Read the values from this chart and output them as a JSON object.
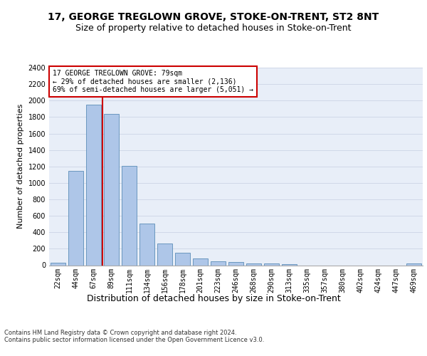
{
  "title": "17, GEORGE TREGLOWN GROVE, STOKE-ON-TRENT, ST2 8NT",
  "subtitle": "Size of property relative to detached houses in Stoke-on-Trent",
  "xlabel": "Distribution of detached houses by size in Stoke-on-Trent",
  "ylabel": "Number of detached properties",
  "categories": [
    "22sqm",
    "44sqm",
    "67sqm",
    "89sqm",
    "111sqm",
    "134sqm",
    "156sqm",
    "178sqm",
    "201sqm",
    "223sqm",
    "246sqm",
    "268sqm",
    "290sqm",
    "313sqm",
    "335sqm",
    "357sqm",
    "380sqm",
    "402sqm",
    "424sqm",
    "447sqm",
    "469sqm"
  ],
  "values": [
    30,
    1145,
    1950,
    1840,
    1210,
    510,
    265,
    155,
    80,
    50,
    42,
    25,
    20,
    15,
    0,
    0,
    0,
    0,
    0,
    0,
    20
  ],
  "bar_color": "#aec6e8",
  "bar_edge_color": "#5b8db8",
  "vline_color": "#cc0000",
  "annotation_text": "17 GEORGE TREGLOWN GROVE: 79sqm\n← 29% of detached houses are smaller (2,136)\n69% of semi-detached houses are larger (5,051) →",
  "annotation_box_color": "#ffffff",
  "annotation_box_edge_color": "#cc0000",
  "ylim": [
    0,
    2400
  ],
  "yticks": [
    0,
    200,
    400,
    600,
    800,
    1000,
    1200,
    1400,
    1600,
    1800,
    2000,
    2200,
    2400
  ],
  "grid_color": "#d0d8e8",
  "background_color": "#e8eef8",
  "footer_line1": "Contains HM Land Registry data © Crown copyright and database right 2024.",
  "footer_line2": "Contains public sector information licensed under the Open Government Licence v3.0.",
  "title_fontsize": 10,
  "subtitle_fontsize": 9,
  "xlabel_fontsize": 9,
  "ylabel_fontsize": 8,
  "tick_fontsize": 7,
  "annotation_fontsize": 7,
  "footer_fontsize": 6
}
